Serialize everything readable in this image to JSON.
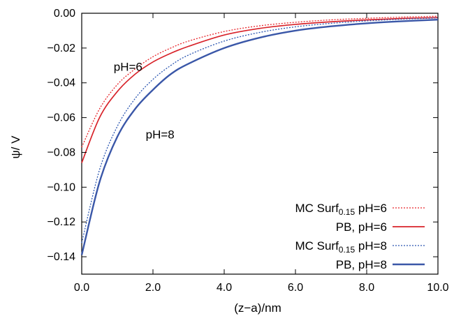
{
  "chart_data": {
    "type": "line",
    "xlabel": "(z−a)/nm",
    "ylabel": "ψ/ V",
    "xlim": [
      0,
      10
    ],
    "ylim": [
      -0.15,
      0
    ],
    "x_ticks": [
      0,
      2,
      4,
      6,
      8,
      10
    ],
    "x_tick_labels": [
      "0.0",
      "2.0",
      "4.0",
      "6.0",
      "8.0",
      "10.0"
    ],
    "y_ticks": [
      0,
      -0.02,
      -0.04,
      -0.06,
      -0.08,
      -0.1,
      -0.12,
      -0.14
    ],
    "y_tick_labels": [
      "0.00",
      "−0.02",
      "−0.04",
      "−0.06",
      "−0.08",
      "−0.10",
      "−0.12",
      "−0.14"
    ],
    "grid": false,
    "legend_position": "bottom-right",
    "annotations": [
      {
        "text": "pH=6",
        "x": 1.3,
        "y": -0.033
      },
      {
        "text": "pH=8",
        "x": 2.2,
        "y": -0.072
      }
    ],
    "series": [
      {
        "name_main": "MC Surf",
        "name_sub": "0.15",
        "name_tail": " pH=6",
        "color": "#e8252a",
        "style": "dotted",
        "x": [
          0,
          0.5,
          1,
          1.5,
          2,
          2.5,
          3,
          4,
          5,
          6,
          7,
          8,
          9,
          10
        ],
        "y": [
          -0.077,
          -0.055,
          -0.041,
          -0.032,
          -0.025,
          -0.02,
          -0.016,
          -0.0105,
          -0.0072,
          -0.0052,
          -0.0038,
          -0.0029,
          -0.0022,
          -0.0017
        ]
      },
      {
        "name_main": "PB, pH=6",
        "name_sub": "",
        "name_tail": "",
        "color": "#d8232a",
        "style": "solid",
        "x": [
          0,
          0.5,
          1,
          1.5,
          2,
          2.5,
          3,
          4,
          5,
          6,
          7,
          8,
          9,
          10
        ],
        "y": [
          -0.086,
          -0.06,
          -0.045,
          -0.035,
          -0.028,
          -0.023,
          -0.019,
          -0.0125,
          -0.0087,
          -0.0064,
          -0.0049,
          -0.0038,
          -0.003,
          -0.0025
        ]
      },
      {
        "name_main": "MC Surf",
        "name_sub": "0.15",
        "name_tail": " pH=8",
        "color": "#2a55b0",
        "style": "dotted",
        "x": [
          0,
          0.5,
          1,
          1.5,
          2,
          2.5,
          3,
          4,
          5,
          6,
          7,
          8,
          9,
          10
        ],
        "y": [
          -0.132,
          -0.09,
          -0.065,
          -0.049,
          -0.038,
          -0.03,
          -0.024,
          -0.016,
          -0.011,
          -0.0078,
          -0.0058,
          -0.0044,
          -0.0034,
          -0.0027
        ]
      },
      {
        "name_main": "PB, pH=8",
        "name_sub": "",
        "name_tail": "",
        "color": "#3a57a8",
        "style": "solid",
        "x": [
          0,
          0.5,
          1,
          1.5,
          2,
          2.5,
          3,
          4,
          5,
          6,
          7,
          8,
          9,
          10
        ],
        "y": [
          -0.139,
          -0.097,
          -0.071,
          -0.055,
          -0.044,
          -0.035,
          -0.029,
          -0.02,
          -0.014,
          -0.01,
          -0.0075,
          -0.0058,
          -0.0046,
          -0.0037
        ]
      }
    ]
  }
}
